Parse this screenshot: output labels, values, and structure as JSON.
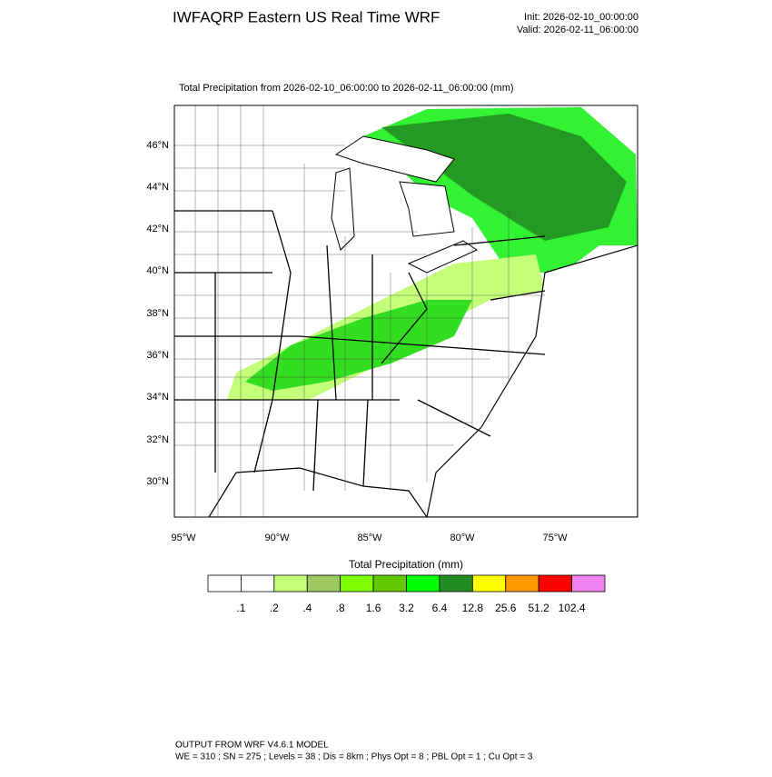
{
  "header": {
    "title": "IWFAQRP Eastern US Real Time WRF",
    "init": "Init: 2026-02-10_00:00:00",
    "valid": "Valid: 2026-02-11_06:00:00"
  },
  "subtitle": "Total Precipitation from 2026-02-10_06:00:00 to 2026-02-11_06:00:00   (mm)",
  "map": {
    "lat_labels": [
      "46°N",
      "44°N",
      "42°N",
      "40°N",
      "38°N",
      "36°N",
      "34°N",
      "32°N",
      "30°N"
    ],
    "lon_labels": [
      "95°W",
      "90°W",
      "85°W",
      "80°W",
      "75°W"
    ]
  },
  "colorbar": {
    "title": "Total Precipitation  (mm)",
    "colors": [
      "#ffffff",
      "#ffffff",
      "#c3ff78",
      "#9dc85f",
      "#80ff00",
      "#64c800",
      "#00ff00",
      "#228b22",
      "#ffff00",
      "#ff9900",
      "#ff0000",
      "#ee82ee"
    ],
    "levels": [
      ".1",
      ".2",
      ".4",
      ".8",
      "1.6",
      "3.2",
      "6.4",
      "12.8",
      "25.6",
      "51.2",
      "102.4"
    ]
  },
  "footer": {
    "line1": "OUTPUT FROM WRF V4.6.1 MODEL",
    "line2": "WE = 310 ; SN = 275 ; Levels = 38 ; Dis = 8km ; Phys Opt = 8 ; PBL Opt = 1 ; Cu Opt = 3"
  }
}
